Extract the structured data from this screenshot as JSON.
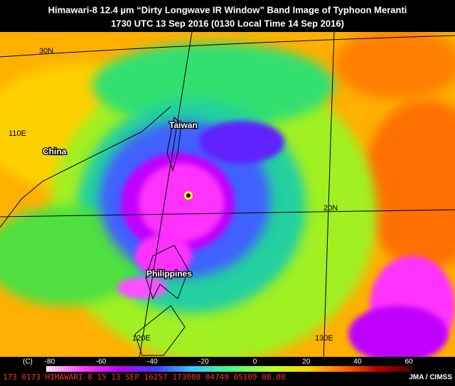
{
  "header": {
    "title": "Himawari-8  12.4 µm “Dirty Longwave IR Window” Band Image of Typhoon Meranti",
    "subtitle": "1730 UTC  13 Sep 2016  (0130 Local Time  14 Sep 2016)"
  },
  "map_labels": {
    "lat_30": "30N",
    "lon_110": "110E",
    "china": "China",
    "taiwan": "Taiwan",
    "lat_20": "20N",
    "philippines": "Philippines",
    "lon_120": "120E",
    "lon_130": "130E"
  },
  "colorbar": {
    "unit": "(C)",
    "ticks": [
      "-80",
      "-60",
      "-40",
      "-20",
      "0",
      "20",
      "40",
      "60"
    ]
  },
  "footer": {
    "data_line": "173 0173 HIMAWARI-8 15 13 SEP 16257 173000 04749 05109 08.00",
    "credit": "JMA / CIMSS"
  }
}
